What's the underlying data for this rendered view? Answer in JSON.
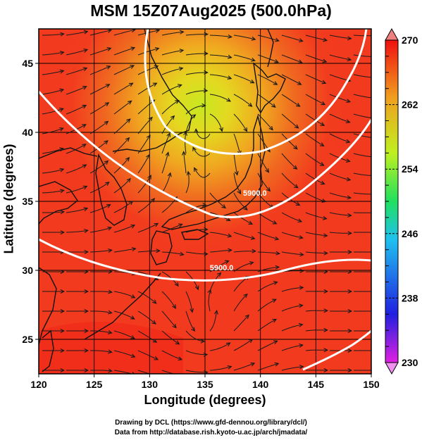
{
  "title": "MSM 15Z07Aug2025 (500.0hPa)",
  "xlabel": "Longitude (degrees)",
  "ylabel": "Latitude  (degrees)",
  "credits": {
    "line1": "Drawing by DCL (https://www.gfd-dennou.org/library/dcl/)",
    "line2": "Data from http://database.rish.kyoto-u.ac.jp/arch/jmadata/"
  },
  "map": {
    "lon_range": [
      120,
      150
    ],
    "lat_range": [
      22.5,
      47.5
    ],
    "x_ticks": [
      120,
      125,
      130,
      135,
      140,
      145,
      150
    ],
    "y_ticks": [
      25,
      30,
      35,
      40,
      45
    ],
    "gridlines": true
  },
  "colorbar": {
    "range": [
      230,
      270
    ],
    "labeled_ticks": [
      230,
      238,
      246,
      254,
      262,
      270
    ],
    "stops": [
      "#e020e0",
      "#2020e0",
      "#20c0f0",
      "#20e060",
      "#c0f020",
      "#f0a020",
      "#f01010"
    ]
  },
  "contours": [
    {
      "label": "5900.0",
      "label_lon": 139.5,
      "label_lat": 35.4
    },
    {
      "label": "5900.0",
      "label_lon": 136.5,
      "label_lat": 30.0
    }
  ],
  "chart_data": {
    "type": "heatmap",
    "title": "MSM 15Z07Aug2025 (500.0hPa)",
    "xlabel": "Longitude (degrees)",
    "ylabel": "Latitude  (degrees)",
    "xlim": [
      120,
      150
    ],
    "ylim": [
      22.5,
      47.5
    ],
    "colorbar_range": [
      230,
      270
    ],
    "grid": true
  }
}
